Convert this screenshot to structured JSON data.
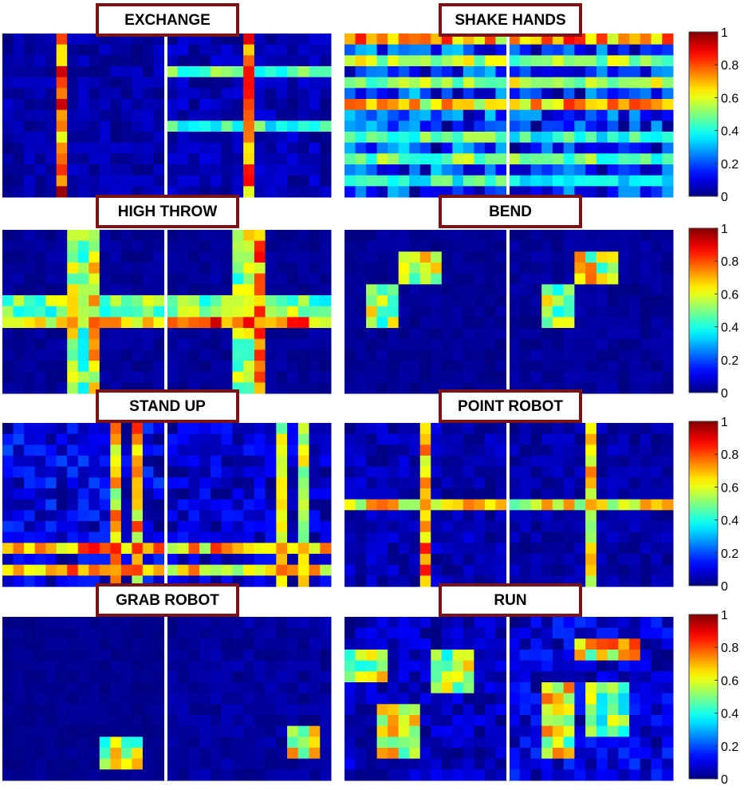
{
  "chart_data": {
    "type": "heatmap",
    "value_range": [
      0,
      1
    ],
    "colormap": "jet",
    "colorbar": {
      "ticks": [
        {
          "value": 1,
          "label": "1"
        },
        {
          "value": 0.8,
          "label": "0.8"
        },
        {
          "value": 0.6,
          "label": "0.6"
        },
        {
          "value": 0.4,
          "label": "0.4"
        },
        {
          "value": 0.2,
          "label": "0.2"
        },
        {
          "value": 0,
          "label": "0"
        }
      ]
    },
    "grid_size": 15,
    "panels": [
      {
        "title": "EXCHANGE",
        "description": "strong vertical band in left matrix; cross pattern in right matrix",
        "left": {
          "cols": {
            "5": 0.85
          },
          "rows": {},
          "noise": 0.08
        },
        "right": {
          "cols": {
            "7": 0.8
          },
          "rows": {
            "3": 0.5,
            "8": 0.45
          },
          "noise": 0.1
        }
      },
      {
        "title": "SHAKE HANDS",
        "description": "dense horizontal bands across both matrices",
        "left": {
          "cols": {},
          "rows": {
            "0": 0.75,
            "2": 0.6,
            "4": 0.55,
            "6": 0.7,
            "9": 0.5,
            "11": 0.55,
            "13": 0.45
          },
          "noise": 0.35
        },
        "right": {
          "cols": {},
          "rows": {
            "0": 0.8,
            "2": 0.55,
            "4": 0.6,
            "6": 0.75,
            "9": 0.45,
            "11": 0.5,
            "13": 0.4
          },
          "noise": 0.3
        }
      },
      {
        "title": "HIGH THROW",
        "description": "symmetric cross centered near middle",
        "left": {
          "cols": {
            "6": 0.6,
            "7": 0.5,
            "8": 0.7
          },
          "rows": {
            "6": 0.55,
            "7": 0.5,
            "8": 0.7
          },
          "noise": 0.05
        },
        "right": {
          "cols": {
            "6": 0.55,
            "7": 0.6,
            "8": 0.8
          },
          "rows": {
            "6": 0.5,
            "7": 0.6,
            "8": 0.8
          },
          "noise": 0.05
        }
      },
      {
        "title": "BEND",
        "description": "two localized blocks forming staircase",
        "left": {
          "blocks": [
            [
              2,
              4,
              5,
              8,
              0.65
            ],
            [
              5,
              8,
              2,
              4,
              0.6
            ]
          ],
          "noise": 0.04
        },
        "right": {
          "blocks": [
            [
              2,
              4,
              6,
              9,
              0.65
            ],
            [
              5,
              8,
              3,
              5,
              0.6
            ]
          ],
          "noise": 0.05
        }
      },
      {
        "title": "STAND UP",
        "description": "strong bottom rows and upper-right block",
        "left": {
          "cols": {
            "10": 0.7,
            "12": 0.75
          },
          "rows": {
            "11": 0.8,
            "13": 0.75
          },
          "noise": 0.2
        },
        "right": {
          "cols": {
            "10": 0.65,
            "12": 0.6
          },
          "rows": {
            "11": 0.75,
            "13": 0.7
          },
          "noise": 0.15
        }
      },
      {
        "title": "POINT ROBOT",
        "description": "cross with long horizontal and vertical bands",
        "left": {
          "cols": {
            "7": 0.75
          },
          "rows": {
            "7": 0.7
          },
          "noise": 0.1
        },
        "right": {
          "cols": {
            "7": 0.7
          },
          "rows": {
            "7": 0.65
          },
          "noise": 0.08
        }
      },
      {
        "title": "GRAB ROBOT",
        "description": "sparse bottom-right activation",
        "left": {
          "blocks": [
            [
              11,
              13,
              9,
              12,
              0.6
            ]
          ],
          "noise": 0.03
        },
        "right": {
          "blocks": [
            [
              10,
              12,
              11,
              13,
              0.65
            ]
          ],
          "noise": 0.06
        }
      },
      {
        "title": "RUN",
        "description": "structured blocks with diagonal pattern",
        "left": {
          "blocks": [
            [
              3,
              5,
              0,
              3,
              0.6
            ],
            [
              8,
              12,
              3,
              6,
              0.65
            ],
            [
              3,
              6,
              8,
              11,
              0.6
            ]
          ],
          "noise": 0.12
        },
        "right": {
          "blocks": [
            [
              2,
              3,
              6,
              11,
              0.7
            ],
            [
              6,
              12,
              3,
              5,
              0.65
            ],
            [
              6,
              10,
              7,
              10,
              0.55
            ]
          ],
          "noise": 0.18
        }
      }
    ]
  }
}
